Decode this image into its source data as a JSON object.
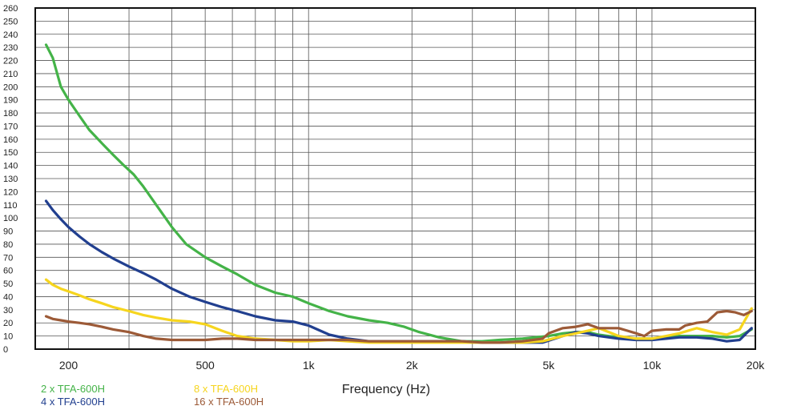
{
  "chart_data": {
    "type": "line",
    "title": "",
    "xlabel": "Frequency (Hz)",
    "ylabel": "",
    "x_scale": "log",
    "xlim": [
      160,
      20000
    ],
    "ylim": [
      0,
      260
    ],
    "y_ticks": [
      0,
      10,
      20,
      30,
      40,
      50,
      60,
      70,
      80,
      90,
      100,
      110,
      120,
      130,
      140,
      150,
      160,
      170,
      180,
      190,
      200,
      210,
      220,
      230,
      240,
      250,
      260
    ],
    "x_ticks": [
      {
        "value": 200,
        "label": "200"
      },
      {
        "value": 500,
        "label": "500"
      },
      {
        "value": 1000,
        "label": "1k"
      },
      {
        "value": 2000,
        "label": "2k"
      },
      {
        "value": 5000,
        "label": "5k"
      },
      {
        "value": 10000,
        "label": "10k"
      },
      {
        "value": 20000,
        "label": "20k"
      }
    ],
    "grid": true,
    "legend_position": "bottom-left",
    "series": [
      {
        "name": "2 x TFA-600H",
        "color": "#44b348",
        "points": [
          [
            172,
            232
          ],
          [
            180,
            222
          ],
          [
            190,
            200
          ],
          [
            200,
            190
          ],
          [
            215,
            178
          ],
          [
            230,
            167
          ],
          [
            250,
            157
          ],
          [
            270,
            148
          ],
          [
            290,
            140
          ],
          [
            310,
            133
          ],
          [
            330,
            124
          ],
          [
            360,
            110
          ],
          [
            400,
            93
          ],
          [
            440,
            80
          ],
          [
            500,
            70
          ],
          [
            560,
            63
          ],
          [
            620,
            57
          ],
          [
            700,
            49
          ],
          [
            800,
            43
          ],
          [
            900,
            40
          ],
          [
            1000,
            35
          ],
          [
            1150,
            29
          ],
          [
            1300,
            25
          ],
          [
            1500,
            22
          ],
          [
            1700,
            20
          ],
          [
            1900,
            17
          ],
          [
            2100,
            13
          ],
          [
            2400,
            9
          ],
          [
            2800,
            6
          ],
          [
            3200,
            6
          ],
          [
            3600,
            7
          ],
          [
            4200,
            8
          ],
          [
            5000,
            10
          ],
          [
            5500,
            12
          ],
          [
            6000,
            13
          ],
          [
            6500,
            13
          ],
          [
            7000,
            11
          ],
          [
            8000,
            9
          ],
          [
            9000,
            8
          ],
          [
            10000,
            8
          ],
          [
            11000,
            9
          ],
          [
            12000,
            10
          ],
          [
            13500,
            10
          ],
          [
            15000,
            10
          ],
          [
            16500,
            9
          ],
          [
            18000,
            10
          ],
          [
            19500,
            15
          ]
        ]
      },
      {
        "name": "4 x TFA-600H",
        "color": "#213f8f",
        "points": [
          [
            172,
            113
          ],
          [
            180,
            106
          ],
          [
            190,
            99
          ],
          [
            200,
            93
          ],
          [
            215,
            86
          ],
          [
            230,
            80
          ],
          [
            250,
            74
          ],
          [
            270,
            69
          ],
          [
            300,
            63
          ],
          [
            330,
            58
          ],
          [
            360,
            53
          ],
          [
            400,
            46
          ],
          [
            450,
            40
          ],
          [
            500,
            36
          ],
          [
            560,
            32
          ],
          [
            620,
            29
          ],
          [
            700,
            25
          ],
          [
            800,
            22
          ],
          [
            900,
            21
          ],
          [
            1000,
            18
          ],
          [
            1150,
            11
          ],
          [
            1300,
            8
          ],
          [
            1500,
            6
          ],
          [
            1800,
            6
          ],
          [
            2000,
            6
          ],
          [
            2400,
            6
          ],
          [
            2800,
            6
          ],
          [
            3200,
            5
          ],
          [
            3600,
            5
          ],
          [
            4200,
            5
          ],
          [
            4800,
            5
          ],
          [
            5500,
            10
          ],
          [
            6000,
            13
          ],
          [
            6500,
            12
          ],
          [
            7000,
            10
          ],
          [
            8000,
            8
          ],
          [
            9000,
            7
          ],
          [
            10000,
            7
          ],
          [
            11000,
            8
          ],
          [
            12000,
            9
          ],
          [
            13500,
            9
          ],
          [
            15000,
            8
          ],
          [
            16500,
            6
          ],
          [
            18000,
            7
          ],
          [
            19500,
            16
          ]
        ]
      },
      {
        "name": "8 x TFA-600H",
        "color": "#f6d51e",
        "points": [
          [
            172,
            53
          ],
          [
            180,
            49
          ],
          [
            190,
            46
          ],
          [
            200,
            44
          ],
          [
            215,
            41
          ],
          [
            230,
            38
          ],
          [
            250,
            35
          ],
          [
            270,
            32
          ],
          [
            300,
            29
          ],
          [
            330,
            26
          ],
          [
            360,
            24
          ],
          [
            400,
            22
          ],
          [
            450,
            21
          ],
          [
            500,
            19
          ],
          [
            560,
            14
          ],
          [
            620,
            10
          ],
          [
            700,
            8
          ],
          [
            800,
            7
          ],
          [
            900,
            6
          ],
          [
            1000,
            6
          ],
          [
            1150,
            7
          ],
          [
            1300,
            6
          ],
          [
            1500,
            5
          ],
          [
            1800,
            5
          ],
          [
            2000,
            5
          ],
          [
            2400,
            5
          ],
          [
            2800,
            5
          ],
          [
            3200,
            5
          ],
          [
            3600,
            5
          ],
          [
            4200,
            5
          ],
          [
            4800,
            6
          ],
          [
            5500,
            10
          ],
          [
            6000,
            12
          ],
          [
            6500,
            14
          ],
          [
            7000,
            16
          ],
          [
            8000,
            10
          ],
          [
            9000,
            8
          ],
          [
            10000,
            8
          ],
          [
            11000,
            10
          ],
          [
            12000,
            12
          ],
          [
            13500,
            16
          ],
          [
            15000,
            13
          ],
          [
            16500,
            11
          ],
          [
            18000,
            15
          ],
          [
            19500,
            31
          ]
        ]
      },
      {
        "name": "16 x TFA-600H",
        "color": "#9c5a37",
        "points": [
          [
            172,
            25
          ],
          [
            180,
            23
          ],
          [
            190,
            22
          ],
          [
            200,
            21
          ],
          [
            215,
            20
          ],
          [
            230,
            19
          ],
          [
            250,
            17
          ],
          [
            270,
            15
          ],
          [
            300,
            13
          ],
          [
            330,
            10
          ],
          [
            360,
            8
          ],
          [
            400,
            7
          ],
          [
            450,
            7
          ],
          [
            500,
            7
          ],
          [
            560,
            8
          ],
          [
            620,
            8
          ],
          [
            700,
            7
          ],
          [
            800,
            7
          ],
          [
            900,
            7
          ],
          [
            1000,
            7
          ],
          [
            1150,
            7
          ],
          [
            1300,
            7
          ],
          [
            1500,
            6
          ],
          [
            1800,
            6
          ],
          [
            2000,
            6
          ],
          [
            2400,
            6
          ],
          [
            2800,
            6
          ],
          [
            3200,
            5
          ],
          [
            3600,
            5
          ],
          [
            4200,
            6
          ],
          [
            4800,
            8
          ],
          [
            5000,
            12
          ],
          [
            5500,
            16
          ],
          [
            6000,
            17
          ],
          [
            6500,
            19
          ],
          [
            7000,
            16
          ],
          [
            8000,
            16
          ],
          [
            8500,
            14
          ],
          [
            9000,
            12
          ],
          [
            9500,
            10
          ],
          [
            10000,
            14
          ],
          [
            11000,
            15
          ],
          [
            12000,
            15
          ],
          [
            12500,
            18
          ],
          [
            13500,
            20
          ],
          [
            14500,
            21
          ],
          [
            15500,
            28
          ],
          [
            16500,
            29
          ],
          [
            17500,
            28
          ],
          [
            18500,
            26
          ],
          [
            19500,
            29
          ]
        ]
      }
    ]
  }
}
